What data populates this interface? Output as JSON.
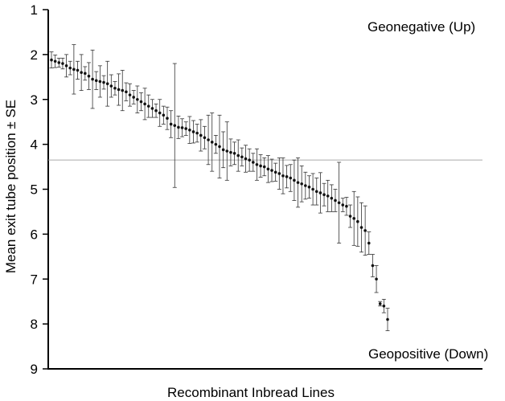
{
  "chart_data": {
    "type": "scatter",
    "title": "",
    "xlabel": "Recombinant Inbread Lines",
    "ylabel": "Mean exit tube position ± SE",
    "ylim": [
      1,
      9
    ],
    "y_inverted": true,
    "y_ticks": [
      "1",
      "2",
      "3",
      "4",
      "5",
      "6",
      "7",
      "8",
      "9"
    ],
    "reference_line": 4.35,
    "annotations": {
      "top": "Geonegative (Up)",
      "bottom": "Geopositive (Down)"
    },
    "series": [
      {
        "points": [
          {
            "y": 2.12,
            "se": 0.18
          },
          {
            "y": 2.15,
            "se": 0.14
          },
          {
            "y": 2.18,
            "se": 0.1
          },
          {
            "y": 2.2,
            "se": 0.12
          },
          {
            "y": 2.25,
            "se": 0.25
          },
          {
            "y": 2.3,
            "se": 0.15
          },
          {
            "y": 2.33,
            "se": 0.55
          },
          {
            "y": 2.35,
            "se": 0.2
          },
          {
            "y": 2.4,
            "se": 0.4
          },
          {
            "y": 2.42,
            "se": 0.15
          },
          {
            "y": 2.48,
            "se": 0.3
          },
          {
            "y": 2.55,
            "se": 0.65
          },
          {
            "y": 2.58,
            "se": 0.2
          },
          {
            "y": 2.6,
            "se": 0.35
          },
          {
            "y": 2.62,
            "se": 0.15
          },
          {
            "y": 2.65,
            "se": 0.5
          },
          {
            "y": 2.7,
            "se": 0.25
          },
          {
            "y": 2.75,
            "se": 0.15
          },
          {
            "y": 2.78,
            "se": 0.35
          },
          {
            "y": 2.8,
            "se": 0.45
          },
          {
            "y": 2.83,
            "se": 0.2
          },
          {
            "y": 2.9,
            "se": 0.25
          },
          {
            "y": 2.95,
            "se": 0.15
          },
          {
            "y": 3.0,
            "se": 0.3
          },
          {
            "y": 3.05,
            "se": 0.2
          },
          {
            "y": 3.1,
            "se": 0.35
          },
          {
            "y": 3.15,
            "se": 0.25
          },
          {
            "y": 3.2,
            "se": 0.2
          },
          {
            "y": 3.25,
            "se": 0.15
          },
          {
            "y": 3.3,
            "se": 0.3
          },
          {
            "y": 3.35,
            "se": 0.2
          },
          {
            "y": 3.42,
            "se": 0.25
          },
          {
            "y": 3.55,
            "se": 0.3
          },
          {
            "y": 3.58,
            "se": 1.38
          },
          {
            "y": 3.62,
            "se": 0.25
          },
          {
            "y": 3.63,
            "se": 0.2
          },
          {
            "y": 3.65,
            "se": 0.15
          },
          {
            "y": 3.68,
            "se": 0.3
          },
          {
            "y": 3.72,
            "se": 0.25
          },
          {
            "y": 3.75,
            "se": 0.2
          },
          {
            "y": 3.8,
            "se": 0.35
          },
          {
            "y": 3.85,
            "se": 0.25
          },
          {
            "y": 3.9,
            "se": 0.55
          },
          {
            "y": 3.95,
            "se": 0.65
          },
          {
            "y": 4.0,
            "se": 0.2
          },
          {
            "y": 4.05,
            "se": 0.7
          },
          {
            "y": 4.12,
            "se": 0.4
          },
          {
            "y": 4.15,
            "se": 0.65
          },
          {
            "y": 4.18,
            "se": 0.3
          },
          {
            "y": 4.2,
            "se": 0.25
          },
          {
            "y": 4.25,
            "se": 0.35
          },
          {
            "y": 4.28,
            "se": 0.2
          },
          {
            "y": 4.32,
            "se": 0.3
          },
          {
            "y": 4.35,
            "se": 0.25
          },
          {
            "y": 4.4,
            "se": 0.2
          },
          {
            "y": 4.45,
            "se": 0.35
          },
          {
            "y": 4.48,
            "se": 0.25
          },
          {
            "y": 4.5,
            "se": 0.2
          },
          {
            "y": 4.55,
            "se": 0.3
          },
          {
            "y": 4.58,
            "se": 0.25
          },
          {
            "y": 4.62,
            "se": 0.2
          },
          {
            "y": 4.65,
            "se": 0.35
          },
          {
            "y": 4.7,
            "se": 0.4
          },
          {
            "y": 4.72,
            "se": 0.25
          },
          {
            "y": 4.75,
            "se": 0.3
          },
          {
            "y": 4.8,
            "se": 0.45
          },
          {
            "y": 4.85,
            "se": 0.55
          },
          {
            "y": 4.88,
            "se": 0.4
          },
          {
            "y": 4.92,
            "se": 0.3
          },
          {
            "y": 4.95,
            "se": 0.25
          },
          {
            "y": 5.0,
            "se": 0.35
          },
          {
            "y": 5.05,
            "se": 0.3
          },
          {
            "y": 5.08,
            "se": 0.45
          },
          {
            "y": 5.12,
            "se": 0.25
          },
          {
            "y": 5.15,
            "se": 0.35
          },
          {
            "y": 5.2,
            "se": 0.3
          },
          {
            "y": 5.25,
            "se": 0.25
          },
          {
            "y": 5.3,
            "se": 0.9
          },
          {
            "y": 5.35,
            "se": 0.15
          },
          {
            "y": 5.38,
            "se": 0.2
          },
          {
            "y": 5.6,
            "se": 0.25
          },
          {
            "y": 5.65,
            "se": 0.6
          },
          {
            "y": 5.72,
            "se": 0.55
          },
          {
            "y": 5.85,
            "se": 0.55
          },
          {
            "y": 5.92,
            "se": 0.55
          },
          {
            "y": 6.2,
            "se": 0.25
          },
          {
            "y": 6.7,
            "se": 0.25
          },
          {
            "y": 7.0,
            "se": 0.3
          },
          {
            "y": 7.55,
            "se": 0.05
          },
          {
            "y": 7.6,
            "se": 0.15
          },
          {
            "y": 7.9,
            "se": 0.25
          }
        ]
      }
    ]
  }
}
